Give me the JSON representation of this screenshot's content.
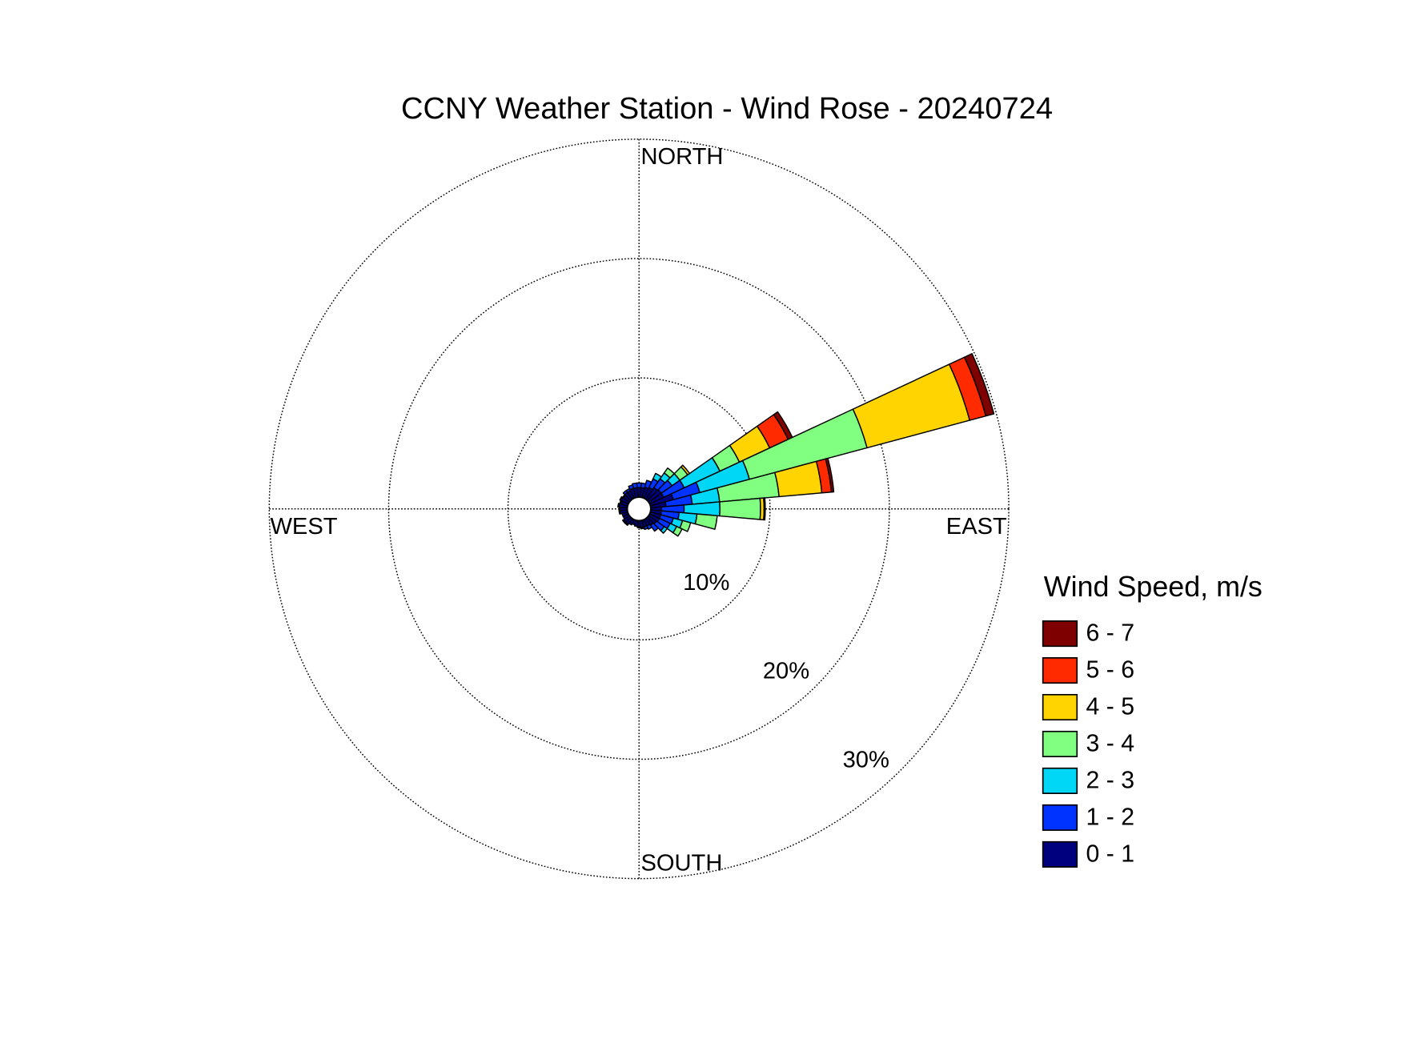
{
  "chart_data": {
    "type": "windrose",
    "title": "CCNY Weather Station - Wind Rose - 20240724",
    "direction_labels": {
      "north": "NORTH",
      "east": "EAST",
      "south": "SOUTH",
      "west": "WEST"
    },
    "legend_title": "Wind Speed, m/s",
    "x": [
      0,
      10,
      20,
      30,
      40,
      50,
      60,
      70,
      80,
      90,
      100,
      110,
      120,
      130,
      140,
      150,
      160,
      170,
      180,
      190,
      200,
      210,
      220,
      230,
      240,
      250,
      260,
      270,
      280,
      290,
      300,
      310,
      320,
      330,
      340,
      350
    ],
    "rlim": [
      0,
      30
    ],
    "rticks": [
      {
        "value": 10,
        "label": "10%"
      },
      {
        "value": 20,
        "label": "20%"
      },
      {
        "value": 30,
        "label": "30%"
      }
    ],
    "series": [
      {
        "name": "0 - 1",
        "color": "#00007f",
        "values": [
          0.8,
          0.8,
          0.9,
          1.0,
          1.2,
          1.3,
          1.3,
          2.0,
          1.3,
          0.9,
          0.9,
          0.9,
          0.9,
          0.8,
          0.7,
          0.6,
          0.6,
          0.6,
          0.5,
          0.5,
          0.4,
          0.5,
          0.6,
          0.6,
          0.5,
          0.5,
          0.6,
          0.6,
          0.7,
          0.6,
          0.7,
          0.6,
          0.7,
          0.7,
          0.8,
          0.8
        ]
      },
      {
        "name": "1 - 2",
        "color": "#0033ff",
        "values": [
          0.4,
          0.4,
          0.6,
          0.8,
          0.9,
          1.1,
          1.9,
          2.3,
          2.2,
          1.9,
          1.5,
          1.1,
          1.0,
          0.8,
          0.6,
          0.3,
          0.2,
          0.1,
          0.1,
          0,
          0,
          0,
          0.1,
          0.1,
          0,
          0,
          0.1,
          0.1,
          0.1,
          0.1,
          0.1,
          0.1,
          0.2,
          0.2,
          0.3,
          0.4
        ]
      },
      {
        "name": "2 - 3",
        "color": "#00d6f5",
        "values": [
          0,
          0,
          0,
          0.5,
          0.6,
          0.8,
          3.3,
          4.3,
          2.3,
          3.0,
          1.5,
          0.8,
          0.6,
          0.3,
          0,
          0,
          0,
          0,
          0,
          0,
          0,
          0,
          0,
          0,
          0,
          0,
          0,
          0,
          0,
          0,
          0,
          0,
          0,
          0,
          0,
          0
        ]
      },
      {
        "name": "3 - 4",
        "color": "#80ff80",
        "values": [
          0,
          0,
          0,
          0,
          0.5,
          0.8,
          1.8,
          10.2,
          5.0,
          3.4,
          1.7,
          0.7,
          0.5,
          0,
          0,
          0,
          0,
          0,
          0,
          0,
          0,
          0,
          0,
          0,
          0,
          0,
          0,
          0,
          0,
          0,
          0,
          0,
          0,
          0,
          0,
          0
        ]
      },
      {
        "name": "4 - 5",
        "color": "#ffd400",
        "values": [
          0,
          0,
          0,
          0,
          0,
          0.2,
          2.8,
          8.9,
          3.6,
          0.3,
          0,
          0,
          0,
          0,
          0,
          0,
          0,
          0,
          0,
          0,
          0,
          0,
          0,
          0,
          0,
          0,
          0,
          0,
          0,
          0,
          0,
          0,
          0,
          0,
          0,
          0
        ]
      },
      {
        "name": "5 - 6",
        "color": "#ff2a00",
        "values": [
          0,
          0,
          0,
          0,
          0,
          0,
          1.7,
          1.4,
          0.8,
          0.1,
          0,
          0,
          0,
          0,
          0,
          0,
          0,
          0,
          0,
          0,
          0,
          0,
          0,
          0,
          0,
          0,
          0,
          0,
          0,
          0,
          0,
          0,
          0,
          0,
          0,
          0
        ]
      },
      {
        "name": "6 - 7",
        "color": "#7f0000",
        "values": [
          0,
          0,
          0,
          0,
          0,
          0,
          0.4,
          0.7,
          0.2,
          0,
          0,
          0,
          0,
          0,
          0,
          0,
          0,
          0,
          0,
          0,
          0,
          0,
          0,
          0,
          0,
          0,
          0,
          0,
          0,
          0,
          0,
          0,
          0,
          0,
          0,
          0
        ]
      }
    ]
  }
}
